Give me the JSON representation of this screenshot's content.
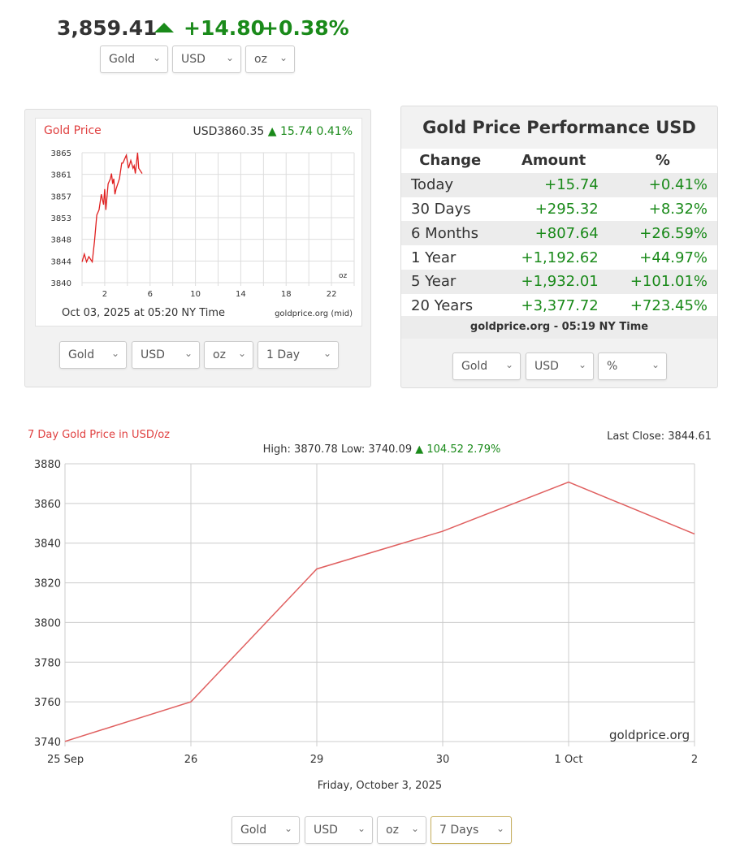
{
  "header": {
    "price": "3,859.41",
    "change": "+14.80",
    "change_pct": "+0.38%",
    "selects": [
      "Gold",
      "USD",
      "oz"
    ]
  },
  "small_chart": {
    "title": "Gold Price",
    "price": "USD3860.35",
    "change": "15.74",
    "change_pct": "0.41%",
    "timestamp": "Oct 03, 2025 at 05:20 NY Time",
    "source": "goldprice.org (mid)",
    "unit": "oz",
    "selects": [
      "Gold",
      "USD",
      "oz",
      "1 Day"
    ],
    "chart_data": {
      "type": "line",
      "ylim": [
        3840,
        3865
      ],
      "yticks": [
        "3865",
        "3861",
        "3857",
        "3853",
        "3848",
        "3844",
        "3840"
      ],
      "xlim": [
        0,
        24
      ],
      "xticks": [
        "2",
        "6",
        "10",
        "14",
        "18",
        "22"
      ],
      "x": [
        0,
        0.2,
        0.4,
        0.6,
        0.9,
        1.1,
        1.3,
        1.5,
        1.7,
        1.9,
        2,
        2.1,
        2.3,
        2.5,
        2.6,
        2.7,
        2.8,
        2.9,
        3,
        3.3,
        3.5,
        3.6,
        3.9,
        4.1,
        4.3,
        4.5,
        4.6,
        4.7,
        4.9,
        5,
        5.3
      ],
      "y": [
        3844,
        3845.5,
        3844,
        3845,
        3844,
        3848,
        3853,
        3854,
        3857,
        3855,
        3858,
        3854,
        3859,
        3860,
        3861,
        3859,
        3860,
        3857,
        3858,
        3860,
        3863,
        3863,
        3864.5,
        3862,
        3863.5,
        3862,
        3862.5,
        3861,
        3865,
        3862,
        3861
      ]
    }
  },
  "performance": {
    "title": "Gold Price Performance USD",
    "headers": [
      "Change",
      "Amount",
      "%"
    ],
    "rows": [
      [
        "Today",
        "+15.74",
        "+0.41%"
      ],
      [
        "30 Days",
        "+295.32",
        "+8.32%"
      ],
      [
        "6 Months",
        "+807.64",
        "+26.59%"
      ],
      [
        "1 Year",
        "+1,192.62",
        "+44.97%"
      ],
      [
        "5 Year",
        "+1,932.01",
        "+101.01%"
      ],
      [
        "20 Years",
        "+3,377.72",
        "+723.45%"
      ]
    ],
    "footer": "goldprice.org - 05:19 NY Time",
    "selects": [
      "Gold",
      "USD",
      "%"
    ]
  },
  "big_chart": {
    "title": "7 Day Gold Price in USD/oz",
    "last_close": "Last Close: 3844.61",
    "high_low": "High: 3870.78 Low: 3740.09",
    "change": "104.52",
    "change_pct": "2.79%",
    "watermark": "goldprice.org",
    "date": "Friday, October 3, 2025",
    "selects": [
      "Gold",
      "USD",
      "oz",
      "7 Days"
    ],
    "chart_data": {
      "type": "line",
      "categories": [
        "25 Sep",
        "26",
        "29",
        "30",
        "1 Oct",
        "2"
      ],
      "values": [
        3740.09,
        3760,
        3827,
        3846,
        3870.78,
        3844.61
      ],
      "ylim": [
        3740,
        3880
      ],
      "yticks": [
        "3880",
        "3860",
        "3840",
        "3820",
        "3800",
        "3780",
        "3760",
        "3740"
      ],
      "color": "#e06060"
    }
  }
}
